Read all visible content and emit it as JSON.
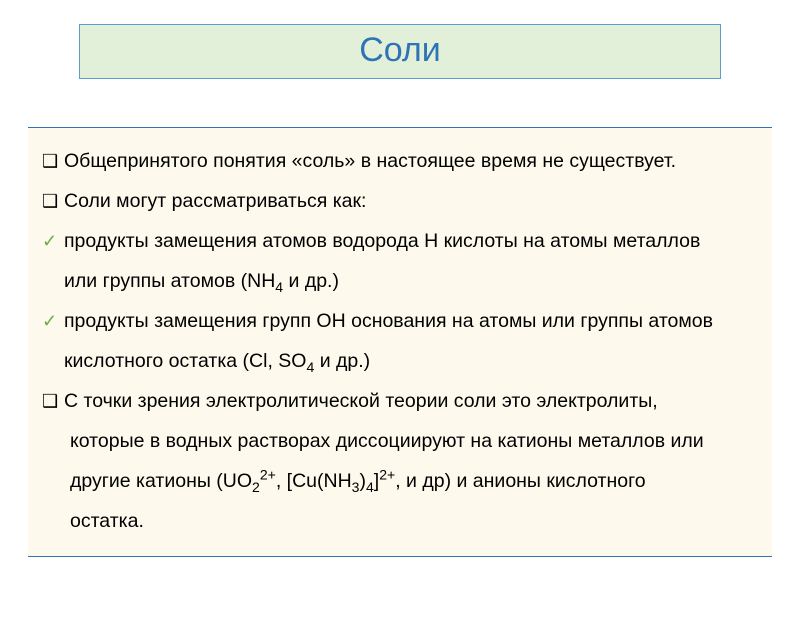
{
  "title": {
    "text": "Соли",
    "color": "#2e74b5",
    "box_bg": "#e2f0d9",
    "box_border": "#5b9bd5",
    "fontsize": 34
  },
  "content": {
    "bg": "#fdf9ed",
    "border_color": "#2e74b5",
    "text_color": "#000000",
    "fontsize": 19.5,
    "line_height": 2.05,
    "check_color": "#70ad47",
    "bullet_glyph": "❑",
    "check_glyph": "✓",
    "lines": {
      "l1": "Общепринятого понятия «соль» в настоящее время не существует.",
      "l2": "Соли могут рассматриваться как:",
      "l3a": "продукты замещения атомов водорода Н кислоты на атомы металлов",
      "l3b_pre": "или группы атомов (NH",
      "l3b_sub": "4",
      "l3b_post": " и др.)",
      "l4a": "продукты замещения групп ОН основания на атомы или группы атомов",
      "l4b_pre": "кислотного остатка (Cl, SO",
      "l4b_sub": "4",
      "l4b_post": " и др.)",
      "l5a": "С точки зрения электролитической теории соли  это электролиты,",
      "l5b": "которые в водных растворах диссоциируют на катионы металлов или",
      "l5c_pre": "другие катионы (UO",
      "l5c_s1": "2",
      "l5c_s2": "2+",
      "l5c_mid": ", [Cu(NH",
      "l5c_s3": "3",
      "l5c_mid2": ")",
      "l5c_s4": "4",
      "l5c_mid3": "]",
      "l5c_s5": "2+",
      "l5c_post": ", и др) и анионы кислотного",
      "l5d": "остатка."
    }
  }
}
